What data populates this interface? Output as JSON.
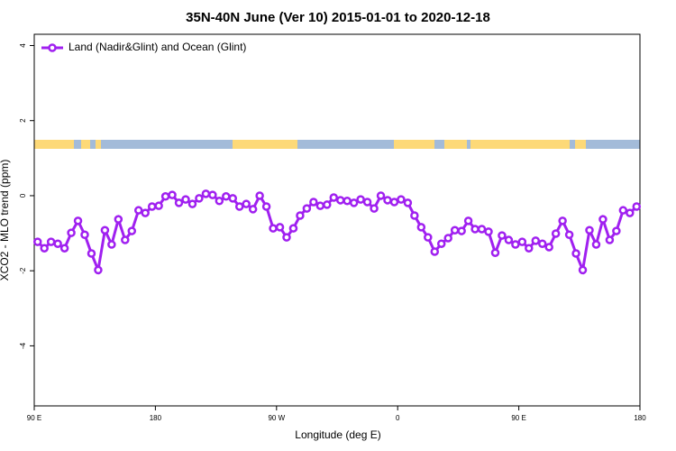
{
  "chart_data": {
    "type": "line",
    "title": "35N-40N June (Ver 10)   2015-01-01 to 2020-12-18",
    "x_label": "Longitude (deg E)",
    "y_label": "XCO2 - MLO trend (ppm)",
    "x": [
      92.5,
      97.5,
      102.5,
      107.5,
      112.5,
      117.5,
      122.5,
      127.5,
      132.5,
      137.5,
      142.5,
      147.5,
      152.5,
      157.5,
      162.5,
      167.5,
      172.5,
      177.5,
      182.5,
      187.5,
      192.5,
      197.5,
      202.5,
      207.5,
      212.5,
      217.5,
      222.5,
      227.5,
      232.5,
      237.5,
      242.5,
      247.5,
      252.5,
      257.5,
      262.5,
      267.5,
      272.5,
      277.5,
      282.5,
      287.5,
      292.5,
      297.5,
      302.5,
      307.5,
      312.5,
      317.5,
      322.5,
      327.5,
      332.5,
      337.5,
      342.5,
      347.5,
      352.5,
      357.5,
      362.5,
      367.5,
      372.5,
      377.5,
      382.5,
      387.5,
      392.5,
      397.5,
      402.5,
      407.5,
      412.5,
      417.5,
      422.5,
      427.5,
      432.5,
      437.5,
      442.5,
      447.5,
      452.5,
      457.5,
      462.5,
      467.5,
      472.5,
      477.5,
      482.5,
      487.5,
      492.5,
      497.5,
      502.5,
      507.5,
      512.5,
      517.5,
      522.5,
      527.5,
      532.5,
      537.5
    ],
    "series": [
      {
        "name": "Land (Nadir&Glint) and Ocean (Glint)",
        "color": "#a020f0",
        "values": [
          -1.23,
          -1.4,
          -1.23,
          -1.28,
          -1.4,
          -0.99,
          -0.67,
          -1.04,
          -1.54,
          -1.98,
          -0.92,
          -1.3,
          -0.63,
          -1.18,
          -0.94,
          -0.39,
          -0.46,
          -0.29,
          -0.27,
          -0.02,
          0.02,
          -0.19,
          -0.1,
          -0.22,
          -0.07,
          0.05,
          0.02,
          -0.14,
          -0.02,
          -0.07,
          -0.29,
          -0.22,
          -0.36,
          0.0,
          -0.29,
          -0.87,
          -0.84,
          -1.11,
          -0.87,
          -0.53,
          -0.34,
          -0.17,
          -0.27,
          -0.24,
          -0.05,
          -0.12,
          -0.14,
          -0.19,
          -0.1,
          -0.17,
          -0.34,
          0.0,
          -0.12,
          -0.17,
          -0.1,
          -0.19,
          -0.53,
          -0.84,
          -1.11,
          -1.49,
          -1.28,
          -1.13,
          -0.92,
          -0.94,
          -0.67,
          -0.89,
          -0.89,
          -0.96,
          -1.52,
          -1.06,
          -1.18,
          -1.3,
          -1.23,
          -1.4,
          -1.2,
          -1.28,
          -1.37,
          -1.01,
          -0.67,
          -1.04,
          -1.54,
          -1.98,
          -0.92,
          -1.3,
          -0.63,
          -1.18,
          -0.94,
          -0.39,
          -0.46,
          -0.29
        ]
      }
    ],
    "xlim": [
      90,
      540
    ],
    "xticks": [
      {
        "value": 90,
        "label": "90 E"
      },
      180,
      {
        "value": 270,
        "label": "90 W"
      },
      {
        "value": 360,
        "label": "0"
      },
      {
        "value": 450,
        "label": "90 E"
      },
      {
        "value": 540,
        "label": "180"
      }
    ],
    "ylim": [
      -5.6,
      4.3
    ],
    "yticks": [
      -4,
      -2,
      0,
      2,
      4
    ],
    "legend": "top-left"
  }
}
